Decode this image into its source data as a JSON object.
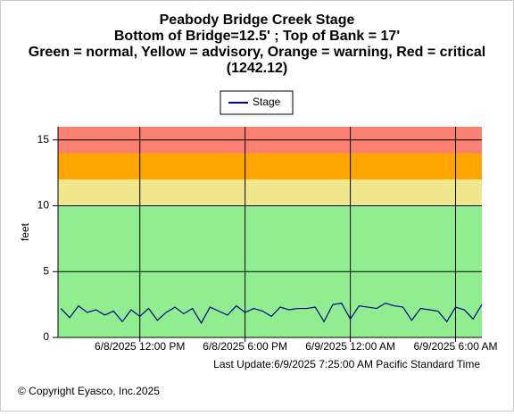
{
  "chart_data": {
    "type": "line",
    "title_lines": [
      "Peabody Bridge Creek Stage",
      "Bottom of Bridge=12.5' ; Top of Bank = 17'",
      "Green = normal, Yellow = advisory, Orange = warning, Red = critical",
      "(1242.12)"
    ],
    "y_label": "feet",
    "last_update": "Last Update:6/9/2025 7:25:00 AM Pacific Standard Time",
    "copyright": "© Copyright Eyasco, Inc.2025",
    "bands": [
      {
        "from": 0,
        "to": 10,
        "color": "#90ee90"
      },
      {
        "from": 10,
        "to": 12,
        "color": "#f0e68c"
      },
      {
        "from": 12,
        "to": 14,
        "color": "#ffa500"
      },
      {
        "from": 14,
        "to": 16,
        "color": "#fa8072"
      }
    ],
    "x": [
      "2025-06-08T07:30",
      "2025-06-08T08:00",
      "2025-06-08T08:30",
      "2025-06-08T09:00",
      "2025-06-08T09:30",
      "2025-06-08T10:00",
      "2025-06-08T10:30",
      "2025-06-08T11:00",
      "2025-06-08T11:30",
      "2025-06-08T12:00",
      "2025-06-08T12:30",
      "2025-06-08T13:00",
      "2025-06-08T13:30",
      "2025-06-08T14:00",
      "2025-06-08T14:30",
      "2025-06-08T15:00",
      "2025-06-08T15:30",
      "2025-06-08T16:00",
      "2025-06-08T16:30",
      "2025-06-08T17:00",
      "2025-06-08T17:30",
      "2025-06-08T18:00",
      "2025-06-08T18:30",
      "2025-06-08T19:00",
      "2025-06-08T19:30",
      "2025-06-08T20:00",
      "2025-06-08T20:30",
      "2025-06-08T21:00",
      "2025-06-08T21:30",
      "2025-06-08T22:00",
      "2025-06-08T22:30",
      "2025-06-08T23:00",
      "2025-06-08T23:30",
      "2025-06-09T00:00",
      "2025-06-09T00:30",
      "2025-06-09T01:00",
      "2025-06-09T01:30",
      "2025-06-09T02:00",
      "2025-06-09T02:30",
      "2025-06-09T03:00",
      "2025-06-09T03:30",
      "2025-06-09T04:00",
      "2025-06-09T04:30",
      "2025-06-09T05:00",
      "2025-06-09T05:30",
      "2025-06-09T06:00",
      "2025-06-09T06:30",
      "2025-06-09T07:00",
      "2025-06-09T07:30"
    ],
    "series": [
      {
        "name": "Stage",
        "color": "#00008b",
        "values": [
          2.2,
          1.5,
          2.4,
          1.9,
          2.1,
          1.7,
          2.0,
          1.2,
          2.1,
          1.6,
          2.2,
          1.3,
          1.9,
          2.3,
          1.8,
          2.2,
          1.1,
          2.3,
          2.0,
          1.7,
          2.4,
          1.9,
          2.2,
          2.0,
          1.6,
          2.3,
          2.1,
          2.2,
          2.2,
          2.3,
          1.2,
          2.5,
          2.6,
          1.4,
          2.4,
          2.3,
          2.2,
          2.6,
          2.4,
          2.3,
          1.3,
          2.2,
          2.1,
          2.0,
          1.2,
          2.3,
          2.1,
          1.4,
          2.5
        ]
      }
    ],
    "xlim": [
      "2025-06-08T07:20",
      "2025-06-09T07:30"
    ],
    "xticks": [
      {
        "value": "2025-06-08T12:00",
        "label": "6/8/2025 12:00 PM"
      },
      {
        "value": "2025-06-08T18:00",
        "label": "6/8/2025 6:00 PM"
      },
      {
        "value": "2025-06-09T00:00",
        "label": "6/9/2025 12:00 AM"
      },
      {
        "value": "2025-06-09T06:00",
        "label": "6/9/2025 6:00 AM"
      }
    ],
    "ylim": [
      0,
      16
    ],
    "yticks": [
      0,
      5,
      10,
      15
    ],
    "grid": true
  }
}
